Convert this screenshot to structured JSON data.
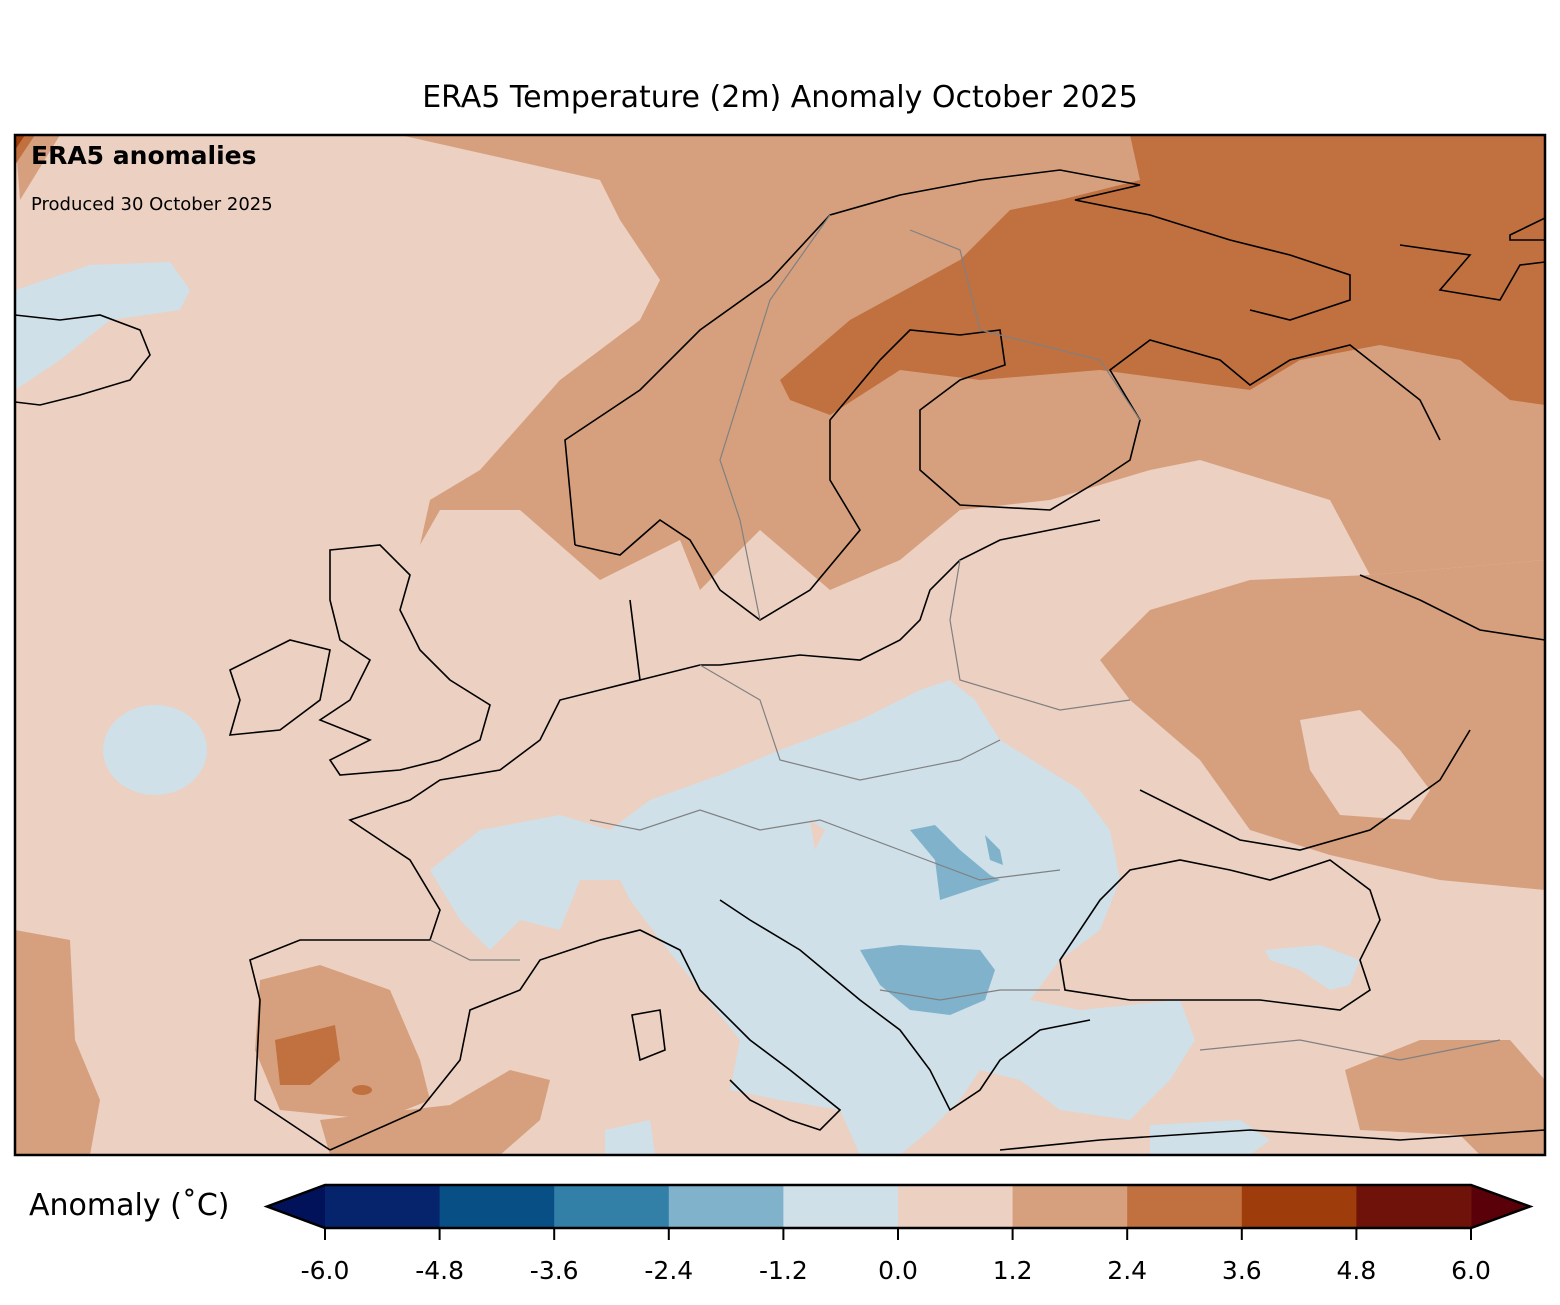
{
  "title": "ERA5 Temperature (2m) Anomaly October 2025",
  "annotation": {
    "heading": "ERA5 anomalies",
    "produced": "Produced 30 October 2025"
  },
  "colorbar": {
    "label": "Anomaly (˚C)",
    "ticks": [
      "-6.0",
      "-4.8",
      "-3.6",
      "-2.4",
      "-1.2",
      "0.0",
      "1.2",
      "2.4",
      "3.6",
      "4.8",
      "6.0"
    ],
    "levels": [
      -6.0,
      -4.8,
      -3.6,
      -2.4,
      -1.2,
      0.0,
      1.2,
      2.4,
      3.6,
      4.8,
      6.0
    ],
    "colors": [
      "#06246c",
      "#084f86",
      "#3280a8",
      "#80b3cb",
      "#cfe0e8",
      "#ecd0c2",
      "#d6a07e",
      "#c17040",
      "#9e3c0c",
      "#6e120a"
    ],
    "extend_low_color": "#02125a",
    "extend_high_color": "#5a0008"
  },
  "map_region": "Europe"
}
